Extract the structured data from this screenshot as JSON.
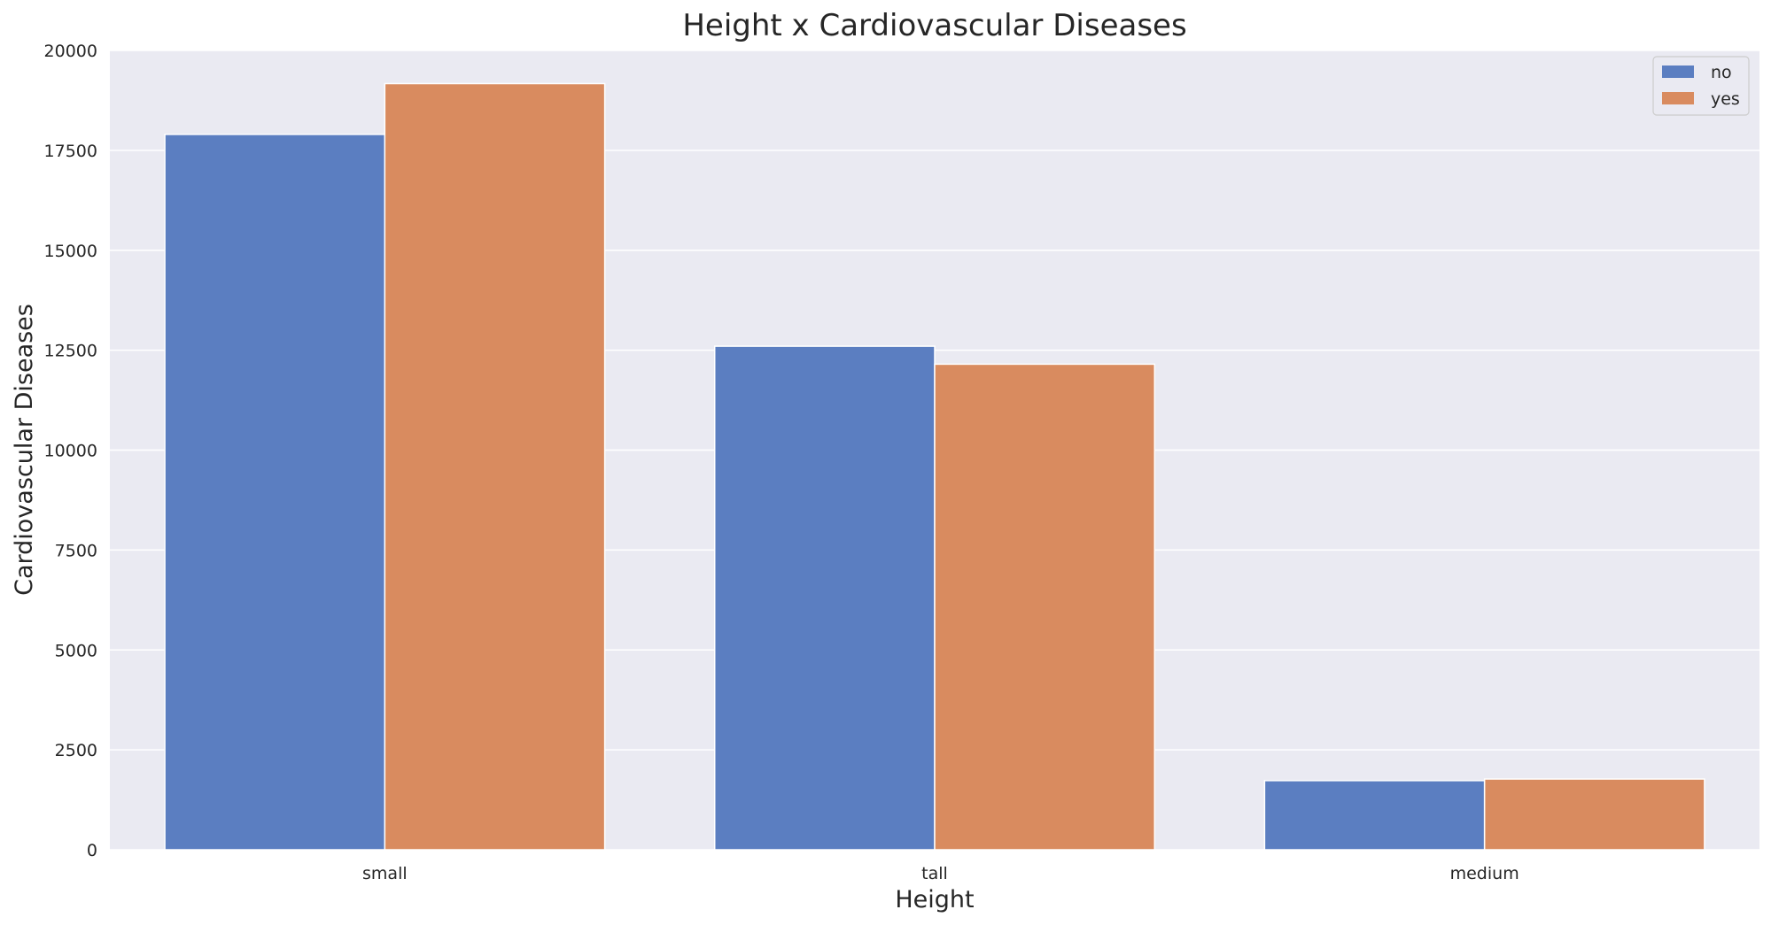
{
  "chart_data": {
    "type": "bar",
    "title": "Height x Cardiovascular Diseases",
    "xlabel": "Height",
    "ylabel": "Cardiovascular Diseases",
    "categories": [
      "small",
      "tall",
      "medium"
    ],
    "series": [
      {
        "name": "no",
        "color": "#5b7ec1",
        "values": [
          17900,
          12600,
          1730
        ]
      },
      {
        "name": "yes",
        "color": "#d98b5f",
        "values": [
          19170,
          12150,
          1770
        ]
      }
    ],
    "ylim": [
      0,
      20000
    ],
    "yticks": [
      0,
      2500,
      5000,
      7500,
      10000,
      12500,
      15000,
      17500,
      20000
    ],
    "grid": true,
    "legend_position": "top-right",
    "background_color": "#eaeaf2"
  }
}
